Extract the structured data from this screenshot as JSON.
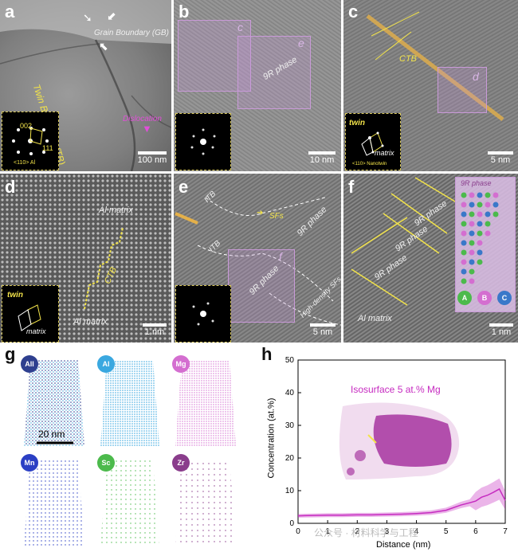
{
  "panels": {
    "a": {
      "label": "a",
      "grain_boundary": "Grain Boundary (GB)",
      "twin_boundary": "Twin Boundary (TB)",
      "dislocation": "Dislocation",
      "diff_002": "002",
      "diff_111": "111",
      "zone": "<110> Al",
      "scale": "100 nm"
    },
    "b": {
      "label": "b",
      "box_c": "c",
      "box_e": "e",
      "phase": "9R phase",
      "scale": "10 nm"
    },
    "c": {
      "label": "c",
      "ctb": "CTB",
      "box_d": "d",
      "twin": "twin",
      "matrix": "matrix",
      "zone": "<110> Nanotwin",
      "scale": "5 nm"
    },
    "d": {
      "label": "d",
      "matrix_top": "Al matrix",
      "ctb": "CTB",
      "matrix_bottom": "Al matrix",
      "twin": "twin",
      "matrix": "matrix",
      "scale": "1 nm"
    },
    "e": {
      "label": "e",
      "itb_top": "ITB",
      "sfs": "SFs",
      "phase_top": "9R phase",
      "itb_mid": "ITB",
      "box_f": "f",
      "phase_mid": "9R phase",
      "high_density": "High-density SFs",
      "scale": "5 nm"
    },
    "f": {
      "label": "f",
      "phase_1": "9R phase",
      "phase_2": "9R phase",
      "phase_3": "9R phase",
      "matrix": "Al matrix",
      "model_title": "9R phase",
      "atom_a": "A",
      "atom_b": "B",
      "atom_c": "C",
      "scale": "1 nm"
    },
    "g": {
      "label": "g",
      "all": "All",
      "al": "Al",
      "mg": "Mg",
      "mn": "Mn",
      "sc": "Sc",
      "zr": "Zr",
      "scale": "20 nm"
    },
    "h": {
      "label": "h",
      "isosurface": "Isosurface 5 at.% Mg",
      "watermark": "公众号 · 材料科学与工程"
    }
  },
  "colors": {
    "all": "#2e3f8f",
    "al": "#3aa8e0",
    "mg": "#d46ed0",
    "mn": "#2b3fc4",
    "sc": "#4cba4c",
    "zr": "#8a3d8c",
    "curve": "#c62bc0",
    "yellow": "#f2e34a",
    "box": "#c99ad8"
  },
  "chart_data": {
    "type": "line",
    "xlabel": "Distance (nm)",
    "ylabel": "Concentration (at.%)",
    "xlim": [
      0,
      7
    ],
    "ylim": [
      0,
      50
    ],
    "xticks": [
      0,
      1,
      2,
      3,
      4,
      5,
      6,
      7
    ],
    "yticks": [
      0,
      10,
      20,
      30,
      40,
      50
    ],
    "series": [
      {
        "x": [
          0,
          0.5,
          1,
          1.5,
          2,
          2.5,
          3,
          3.5,
          4,
          4.5,
          5,
          5.5,
          5.8,
          6.0,
          6.2,
          6.4,
          6.6,
          6.8,
          7.0
        ],
        "y": [
          2.3,
          2.4,
          2.5,
          2.5,
          2.6,
          2.6,
          2.7,
          2.8,
          3.0,
          3.3,
          4.0,
          5.6,
          6.3,
          6.8,
          8.0,
          8.6,
          9.5,
          10.5,
          7.0
        ]
      }
    ]
  }
}
